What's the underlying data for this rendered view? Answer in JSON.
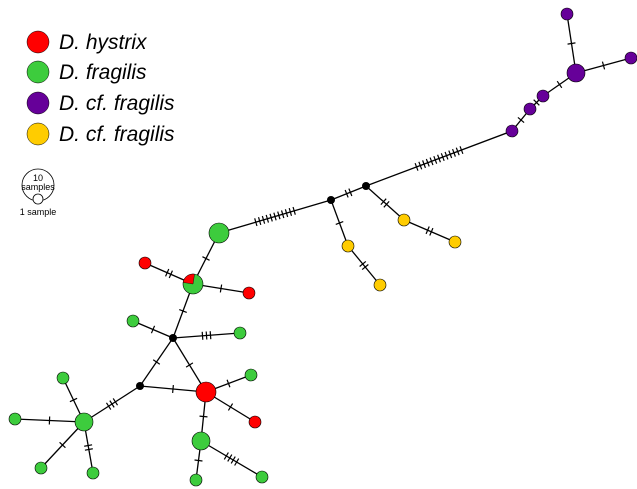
{
  "colors": {
    "hystrix": "#ff0000",
    "fragilis": "#3dcc3d",
    "cf_fragilis_purple": "#660099",
    "cf_fragilis_yellow": "#ffcc00",
    "median_vector": "#000000",
    "edge": "#000000"
  },
  "legend": {
    "items": [
      {
        "label": "D. hystrix",
        "color": "#ff0000"
      },
      {
        "label": "D. fragilis",
        "color": "#3dcc3d"
      },
      {
        "label": "D. cf. fragilis",
        "color": "#660099"
      },
      {
        "label": "D. cf. fragilis",
        "color": "#ffcc00"
      }
    ]
  },
  "scale": {
    "large_label_line1": "10",
    "large_label_line2": "samples",
    "small_label": "1 sample"
  },
  "network": {
    "nodes": [
      {
        "id": "p1",
        "color": "#660099"
      },
      {
        "id": "p2",
        "color": "#660099"
      },
      {
        "id": "p3",
        "color": "#660099"
      },
      {
        "id": "p4",
        "color": "#660099"
      },
      {
        "id": "p5",
        "color": "#660099"
      },
      {
        "id": "p6",
        "color": "#660099"
      },
      {
        "id": "m1",
        "color": "#000000"
      },
      {
        "id": "m2",
        "color": "#000000"
      },
      {
        "id": "m3",
        "color": "#000000"
      },
      {
        "id": "m4",
        "color": "#000000"
      },
      {
        "id": "y1",
        "color": "#ffcc00"
      },
      {
        "id": "y2",
        "color": "#ffcc00"
      },
      {
        "id": "y3",
        "color": "#ffcc00"
      },
      {
        "id": "y4",
        "color": "#ffcc00"
      },
      {
        "id": "g1",
        "color": "#3dcc3d"
      },
      {
        "id": "rg",
        "color": "#3dcc3d",
        "split": "#ff0000"
      },
      {
        "id": "r1",
        "color": "#ff0000"
      },
      {
        "id": "r2",
        "color": "#ff0000"
      },
      {
        "id": "g2",
        "color": "#3dcc3d"
      },
      {
        "id": "g3",
        "color": "#3dcc3d"
      },
      {
        "id": "R3",
        "color": "#ff0000"
      },
      {
        "id": "g4",
        "color": "#3dcc3d"
      },
      {
        "id": "r4",
        "color": "#ff0000"
      },
      {
        "id": "G5",
        "color": "#3dcc3d"
      },
      {
        "id": "g5",
        "color": "#3dcc3d"
      },
      {
        "id": "g6",
        "color": "#3dcc3d"
      },
      {
        "id": "G7",
        "color": "#3dcc3d"
      },
      {
        "id": "g8",
        "color": "#3dcc3d"
      },
      {
        "id": "g9",
        "color": "#3dcc3d"
      },
      {
        "id": "g10",
        "color": "#3dcc3d"
      },
      {
        "id": "g11",
        "color": "#3dcc3d"
      }
    ],
    "edges": [
      {
        "from": "p1",
        "to": "p3",
        "mutations": 1
      },
      {
        "from": "p2",
        "to": "p3",
        "mutations": 1
      },
      {
        "from": "p3",
        "to": "p4",
        "mutations": 1
      },
      {
        "from": "p4",
        "to": "p5",
        "mutations": 1
      },
      {
        "from": "p5",
        "to": "p6",
        "mutations": 1
      },
      {
        "from": "p6",
        "to": "m1",
        "mutations": 13
      },
      {
        "from": "m1",
        "to": "m2",
        "mutations": 2
      },
      {
        "from": "m1",
        "to": "y1",
        "mutations": 2
      },
      {
        "from": "y1",
        "to": "y2",
        "mutations": 2
      },
      {
        "from": "m2",
        "to": "y3",
        "mutations": 1
      },
      {
        "from": "y3",
        "to": "y4",
        "mutations": 2
      },
      {
        "from": "m2",
        "to": "g1",
        "mutations": 11
      },
      {
        "from": "g1",
        "to": "rg",
        "mutations": 1
      },
      {
        "from": "rg",
        "to": "r1",
        "mutations": 2
      },
      {
        "from": "rg",
        "to": "r2",
        "mutations": 1
      },
      {
        "from": "rg",
        "to": "m3",
        "mutations": 1
      },
      {
        "from": "m3",
        "to": "g2",
        "mutations": 1
      },
      {
        "from": "m3",
        "to": "g3",
        "mutations": 3
      },
      {
        "from": "m3",
        "to": "R3",
        "mutations": 1
      },
      {
        "from": "m3",
        "to": "m4",
        "mutations": 1
      },
      {
        "from": "m4",
        "to": "R3",
        "mutations": 1
      },
      {
        "from": "R3",
        "to": "g4",
        "mutations": 1
      },
      {
        "from": "R3",
        "to": "r4",
        "mutations": 1
      },
      {
        "from": "R3",
        "to": "G5",
        "mutations": 1
      },
      {
        "from": "G5",
        "to": "g5",
        "mutations": 1
      },
      {
        "from": "G5",
        "to": "g6",
        "mutations": 4
      },
      {
        "from": "m4",
        "to": "G7",
        "mutations": 3
      },
      {
        "from": "G7",
        "to": "g8",
        "mutations": 1
      },
      {
        "from": "G7",
        "to": "g9",
        "mutations": 1
      },
      {
        "from": "G7",
        "to": "g10",
        "mutations": 1
      },
      {
        "from": "G7",
        "to": "g11",
        "mutations": 2
      }
    ]
  }
}
